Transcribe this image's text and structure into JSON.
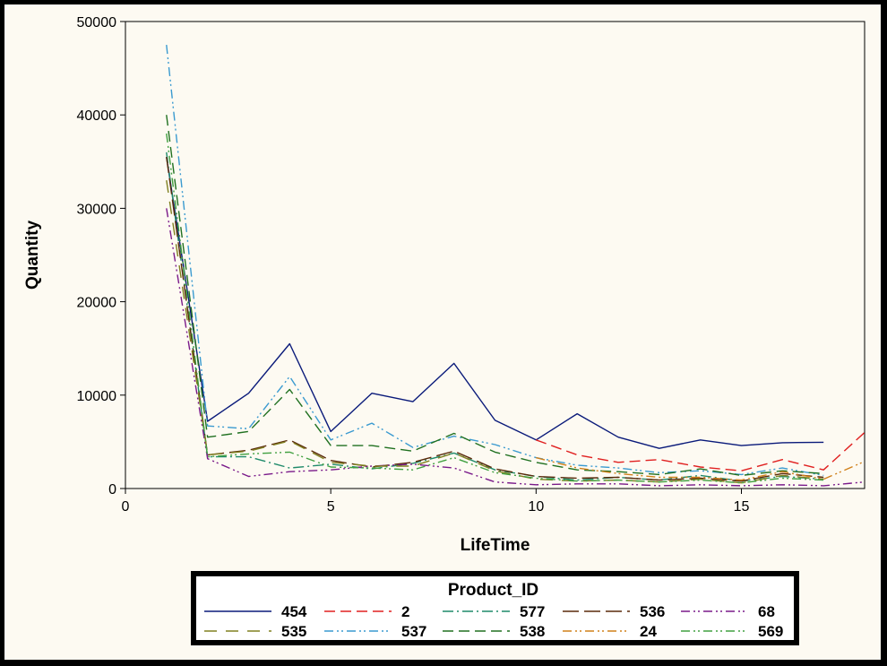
{
  "chart_data": {
    "type": "line",
    "xlabel": "LifeTime",
    "ylabel": "Quantity",
    "xlim": [
      0,
      18
    ],
    "ylim": [
      0,
      50000
    ],
    "xticks": [
      "0",
      "5",
      "10",
      "15"
    ],
    "yticks": [
      "0",
      "10000",
      "20000",
      "30000",
      "40000",
      "50000"
    ],
    "grid": false,
    "legend": {
      "title": "Product_ID",
      "placement": "bottom"
    },
    "x": [
      1,
      2,
      3,
      4,
      5,
      6,
      7,
      8,
      9,
      10,
      11,
      12,
      13,
      14,
      15,
      16,
      17,
      18
    ],
    "series": [
      {
        "name": "454",
        "color": "#0a1a7a",
        "dash": "solid",
        "values": [
          35500,
          7200,
          10200,
          15500,
          6100,
          10200,
          9300,
          13400,
          7300,
          5200,
          8000,
          5500,
          4300,
          5200,
          4600,
          4900,
          4950,
          null
        ]
      },
      {
        "name": "2",
        "color": "#e02020",
        "dash": "dash",
        "values": [
          null,
          null,
          null,
          null,
          null,
          null,
          null,
          null,
          null,
          5200,
          3600,
          2800,
          3100,
          2300,
          1900,
          3100,
          2000,
          6000
        ]
      },
      {
        "name": "577",
        "color": "#1f8a6a",
        "dash": "dashdot",
        "values": [
          36000,
          3400,
          3400,
          2200,
          2600,
          2100,
          2700,
          3800,
          2000,
          1300,
          900,
          1200,
          900,
          1400,
          800,
          1300,
          1000,
          null
        ]
      },
      {
        "name": "536",
        "color": "#5a2a0a",
        "dash": "longdash",
        "values": [
          35500,
          3600,
          4100,
          5200,
          3000,
          2300,
          2800,
          4000,
          2100,
          1300,
          1100,
          1200,
          900,
          1100,
          800,
          1600,
          1200,
          null
        ]
      },
      {
        "name": "68",
        "color": "#7a1a8a",
        "dash": "dashdotdot",
        "values": [
          30000,
          3200,
          1300,
          1800,
          2000,
          2400,
          2600,
          2200,
          700,
          400,
          500,
          500,
          300,
          400,
          300,
          400,
          300,
          700
        ]
      },
      {
        "name": "535",
        "color": "#808020",
        "dash": "longdashgap",
        "values": [
          33000,
          3600,
          4000,
          5100,
          2800,
          2400,
          2400,
          3800,
          1900,
          1000,
          800,
          900,
          700,
          1000,
          600,
          1400,
          1000,
          null
        ]
      },
      {
        "name": "537",
        "color": "#3a9ad0",
        "dash": "dashdotdot",
        "values": [
          47500,
          6700,
          6400,
          12000,
          5200,
          7000,
          4400,
          5600,
          4700,
          3300,
          2500,
          2200,
          1700,
          1900,
          1500,
          2200,
          1400,
          null
        ]
      },
      {
        "name": "538",
        "color": "#207020",
        "dash": "dash",
        "values": [
          40000,
          5500,
          6100,
          10600,
          4600,
          4600,
          4000,
          5900,
          3900,
          2800,
          2000,
          1800,
          1500,
          2100,
          1400,
          1900,
          1600,
          null
        ]
      },
      {
        "name": "24",
        "color": "#d0801a",
        "dash": "dashdotdot",
        "values": [
          null,
          null,
          null,
          null,
          null,
          null,
          null,
          null,
          null,
          3300,
          2200,
          1600,
          1200,
          1200,
          900,
          1800,
          1000,
          2900
        ]
      },
      {
        "name": "569",
        "color": "#40a040",
        "dash": "dashdotdot",
        "values": [
          38000,
          3400,
          3700,
          3900,
          2300,
          2200,
          2000,
          3300,
          1700,
          1100,
          800,
          900,
          700,
          900,
          600,
          1100,
          900,
          null
        ]
      }
    ]
  }
}
